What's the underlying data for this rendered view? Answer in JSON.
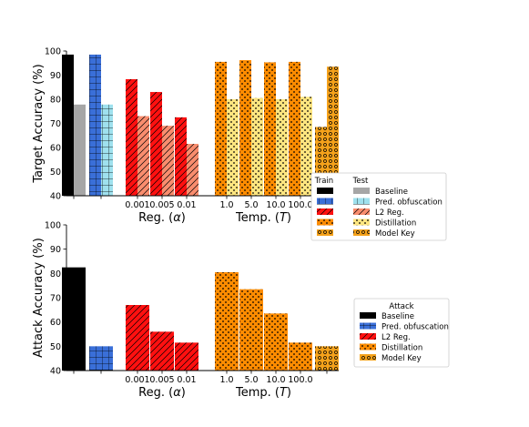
{
  "colors": {
    "baseline_train": "#000000",
    "baseline_test": "#a6a6a6",
    "obf_train": "#3a6fd8",
    "obf_test": "#9fe1ee",
    "l2_train": "#ff1010",
    "l2_test": "#f98d6e",
    "dist_train": "#ff8c00",
    "dist_test": "#ffe680",
    "model_key": "#f5a21b"
  },
  "chart_data": [
    {
      "type": "bar",
      "ylabel": "Target Accuracy (%)",
      "ylim": [
        40,
        100
      ],
      "yticks": [
        40,
        50,
        60,
        70,
        80,
        90,
        100
      ],
      "group_labels": [
        {
          "key": "l2",
          "text": "Reg. (α)"
        },
        {
          "key": "dist",
          "text": "Temp. (T)"
        }
      ],
      "categories": [
        "",
        "",
        "0.001",
        "0.005",
        "0.01",
        "1.0",
        "5.0",
        "10.0",
        "100.0",
        ""
      ],
      "series": [
        {
          "name": "Train",
          "method": [
            "baseline",
            "obf",
            "l2",
            "l2",
            "l2",
            "dist",
            "dist",
            "dist",
            "dist",
            "model_key"
          ],
          "values": [
            98.5,
            98.5,
            88.3,
            83.0,
            72.5,
            95.5,
            96.2,
            95.3,
            95.5,
            68.5
          ]
        },
        {
          "name": "Test",
          "method": [
            "baseline",
            "obf",
            "l2",
            "l2",
            "l2",
            "dist",
            "dist",
            "dist",
            "dist",
            "model_key"
          ],
          "values": [
            77.8,
            77.8,
            73.0,
            69.0,
            61.5,
            80.0,
            80.5,
            80.0,
            81.0,
            93.5
          ]
        }
      ],
      "legend": {
        "placement": "right",
        "columns": [
          "Train",
          "Test"
        ],
        "entries": [
          "Baseline",
          "Pred. obfuscation",
          "L2 Reg.",
          "Distillation",
          "Model Key"
        ]
      }
    },
    {
      "type": "bar",
      "ylabel": "Attack Accuracy (%)",
      "ylim": [
        40,
        100
      ],
      "yticks": [
        40,
        50,
        60,
        70,
        80,
        90,
        100
      ],
      "group_labels": [
        {
          "key": "l2",
          "text": "Reg. (α)"
        },
        {
          "key": "dist",
          "text": "Temp. (T)"
        }
      ],
      "categories": [
        "",
        "",
        "0.001",
        "0.005",
        "0.01",
        "1.0",
        "5.0",
        "10.0",
        "100.0",
        ""
      ],
      "series": [
        {
          "name": "Attack",
          "method": [
            "baseline",
            "obf",
            "l2",
            "l2",
            "l2",
            "dist",
            "dist",
            "dist",
            "dist",
            "model_key"
          ],
          "values": [
            82.5,
            50.0,
            67.0,
            56.0,
            51.5,
            80.5,
            73.5,
            63.5,
            51.5,
            50.0
          ]
        }
      ],
      "legend": {
        "placement": "right",
        "title": "Attack",
        "entries": [
          "Baseline",
          "Pred. obfuscation",
          "L2 Reg.",
          "Distillation",
          "Model Key"
        ]
      }
    }
  ]
}
